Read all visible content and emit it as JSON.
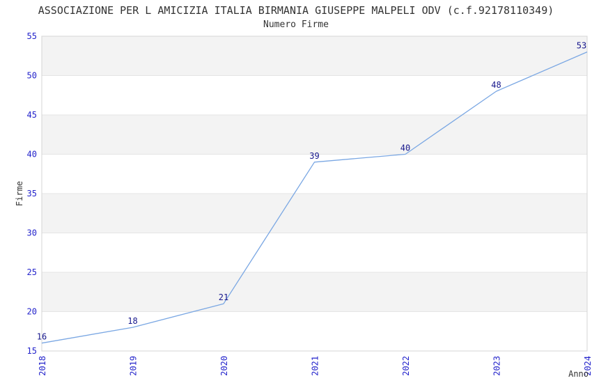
{
  "chart_data": {
    "type": "line",
    "title": "ASSOCIAZIONE PER L AMICIZIA ITALIA BIRMANIA GIUSEPPE MALPELI ODV (c.f.92178110349)",
    "subtitle": "Numero Firme",
    "xlabel": "Anno",
    "ylabel": "Firme",
    "x": [
      2018,
      2019,
      2020,
      2021,
      2022,
      2023,
      2024
    ],
    "series": [
      {
        "name": "Numero Firme",
        "values": [
          16,
          18,
          21,
          39,
          40,
          48,
          53
        ]
      }
    ],
    "ylim": [
      15,
      55
    ],
    "ytick_step": 5,
    "legend": "none",
    "grid": "alternating-horizontal-bands",
    "colors": {
      "line": "#7aa7e3",
      "tick_label": "#2323cb",
      "data_label": "#16168c",
      "band_gray": "#f3f3f3",
      "band_edge": "#e4e4e4",
      "plot_border": "#d4d4d4",
      "text": "#333333",
      "background": "#ffffff"
    }
  }
}
